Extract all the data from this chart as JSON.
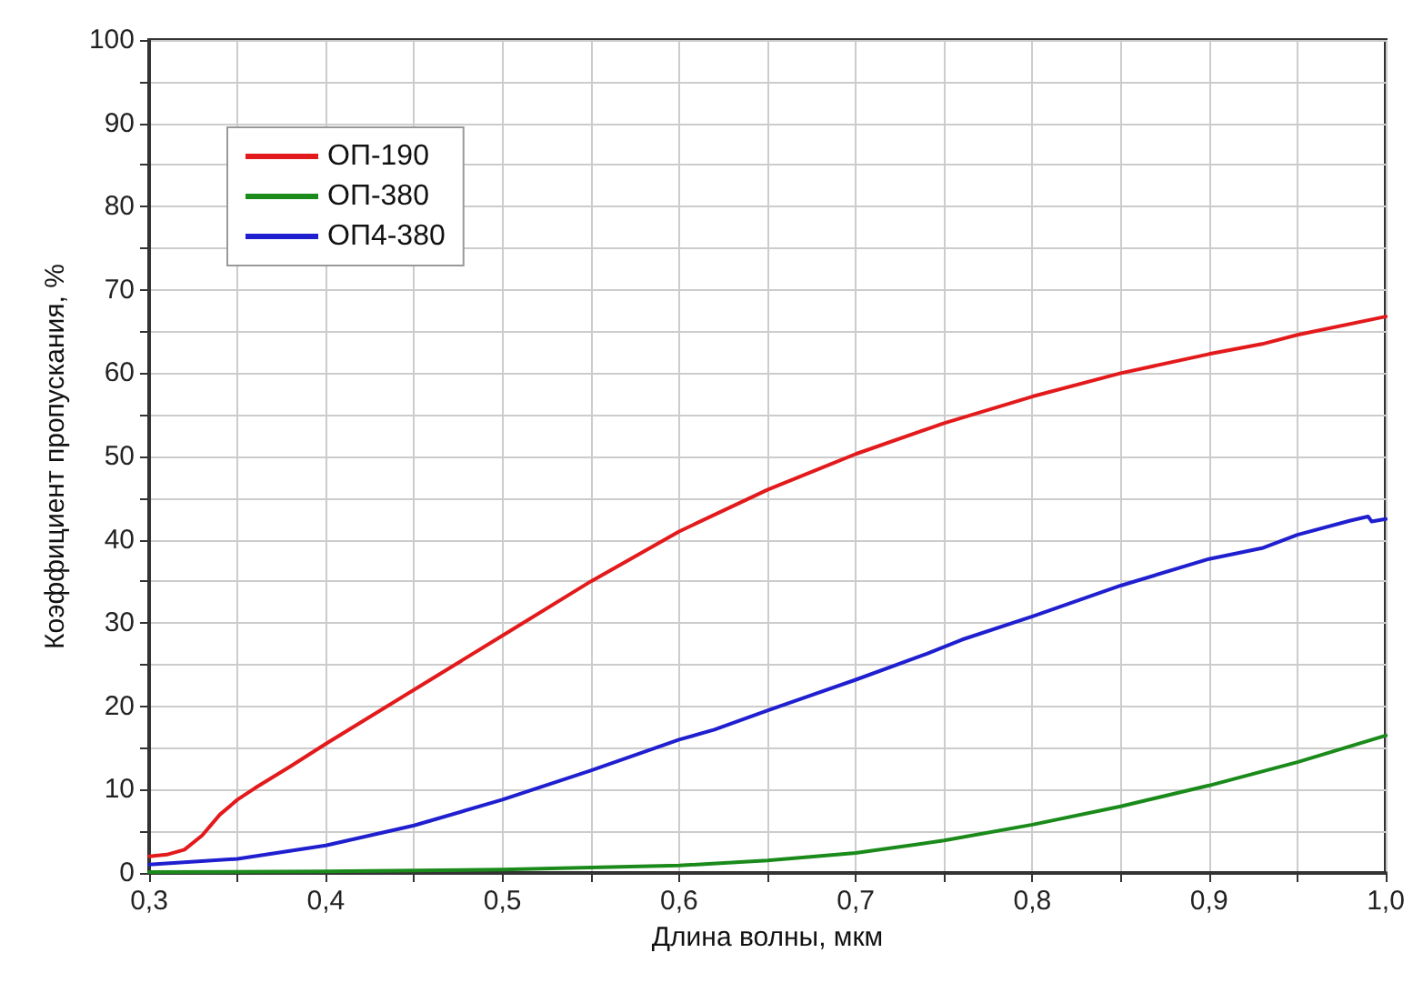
{
  "chart_data": {
    "type": "line",
    "xlabel": "Длина волны, мкм",
    "ylabel": "Коэффициент пропускания, %",
    "xlim": [
      0.3,
      1.0
    ],
    "ylim": [
      0,
      100
    ],
    "xticks": [
      {
        "value": 0.3,
        "label": "0,3"
      },
      {
        "value": 0.35,
        "label": null
      },
      {
        "value": 0.4,
        "label": "0,4"
      },
      {
        "value": 0.45,
        "label": null
      },
      {
        "value": 0.5,
        "label": "0,5"
      },
      {
        "value": 0.55,
        "label": null
      },
      {
        "value": 0.6,
        "label": "0,6"
      },
      {
        "value": 0.65,
        "label": null
      },
      {
        "value": 0.7,
        "label": "0,7"
      },
      {
        "value": 0.75,
        "label": null
      },
      {
        "value": 0.8,
        "label": "0,8"
      },
      {
        "value": 0.85,
        "label": null
      },
      {
        "value": 0.9,
        "label": "0,9"
      },
      {
        "value": 0.95,
        "label": null
      },
      {
        "value": 1.0,
        "label": "1,0"
      }
    ],
    "yticks": [
      0,
      {
        "value": 5,
        "label": null
      },
      10,
      {
        "value": 15,
        "label": null
      },
      20,
      {
        "value": 25,
        "label": null
      },
      30,
      {
        "value": 35,
        "label": null
      },
      40,
      {
        "value": 45,
        "label": null
      },
      50,
      {
        "value": 55,
        "label": null
      },
      60,
      {
        "value": 65,
        "label": null
      },
      70,
      {
        "value": 75,
        "label": null
      },
      80,
      {
        "value": 85,
        "label": null
      },
      90,
      {
        "value": 95,
        "label": null
      },
      100
    ],
    "grid": true,
    "legend": "top left",
    "marker": "none",
    "line_style": "solid",
    "series": [
      {
        "name": "ОП-190",
        "color": "#e31a1c",
        "x": [
          0.3,
          0.31,
          0.32,
          0.33,
          0.34,
          0.35,
          0.36,
          0.38,
          0.4,
          0.45,
          0.5,
          0.55,
          0.6,
          0.65,
          0.7,
          0.75,
          0.8,
          0.85,
          0.9,
          0.93,
          0.95,
          1.0
        ],
        "values": [
          2.0,
          2.2,
          2.8,
          4.5,
          7,
          8.8,
          10.2,
          12.8,
          15.5,
          22,
          28.5,
          35,
          41,
          46,
          50.3,
          54,
          57.2,
          60,
          62.3,
          63.5,
          64.6,
          66.8
        ]
      },
      {
        "name": "ОП-380",
        "color": "#1a8a1a",
        "x": [
          0.3,
          0.4,
          0.5,
          0.6,
          0.65,
          0.7,
          0.75,
          0.8,
          0.85,
          0.9,
          0.95,
          1.0
        ],
        "values": [
          0.1,
          0.2,
          0.4,
          0.9,
          1.5,
          2.4,
          3.9,
          5.8,
          8.0,
          10.5,
          13.3,
          16.5
        ]
      },
      {
        "name": "ОП4-380",
        "color": "#1f1fd0",
        "x": [
          0.3,
          0.35,
          0.4,
          0.45,
          0.5,
          0.55,
          0.6,
          0.62,
          0.65,
          0.7,
          0.74,
          0.76,
          0.8,
          0.85,
          0.9,
          0.93,
          0.95,
          0.98,
          0.99,
          0.992,
          1.0
        ],
        "values": [
          1,
          1.7,
          3.3,
          5.7,
          8.8,
          12.3,
          16,
          17.2,
          19.5,
          23.2,
          26.3,
          28,
          30.8,
          34.5,
          37.7,
          39,
          40.6,
          42.3,
          42.8,
          42.2,
          42.5
        ]
      }
    ]
  }
}
